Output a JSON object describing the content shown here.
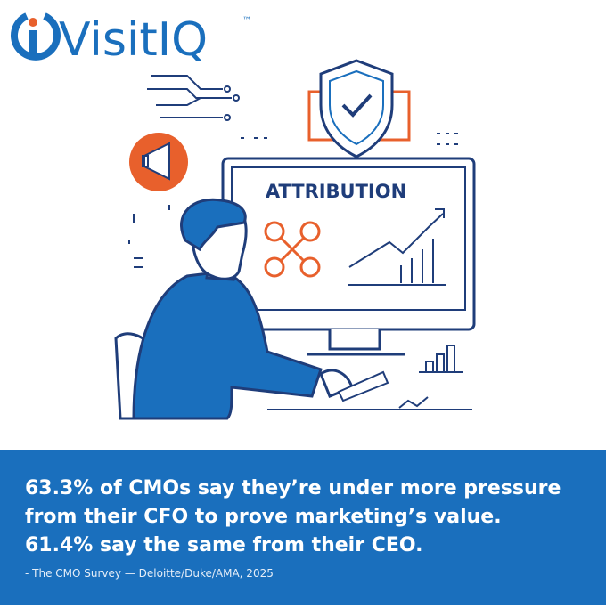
{
  "logo": {
    "name": "VisitIQ",
    "trademark": "™"
  },
  "illustration": {
    "screen_label": "ATTRIBUTION"
  },
  "quote": {
    "lines": [
      "63.3% of CMOs say they’re under more pressure",
      "from their CFO to prove marketing’s value.",
      "61.4% say the same from their CEO."
    ],
    "source": "- The CMO Survey — Deloitte/Duke/AMA, 2025"
  }
}
